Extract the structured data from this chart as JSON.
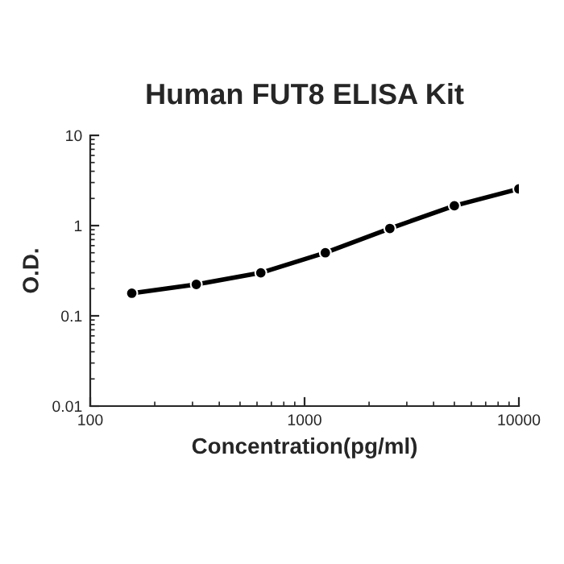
{
  "chart_data": {
    "type": "line",
    "title": "Human FUT8 ELISA Kit",
    "xlabel": "Concentration(pg/ml)",
    "ylabel": "O.D.",
    "x": [
      156.25,
      312.5,
      625,
      1250,
      2500,
      5000,
      10000
    ],
    "series": [
      {
        "color": "#000000",
        "values": [
          0.178,
          0.223,
          0.3,
          0.5,
          0.93,
          1.66,
          2.55
        ]
      }
    ],
    "log": "xy",
    "xlim": [
      100,
      10000
    ],
    "ylim": [
      0.01,
      10
    ],
    "xticks": [
      100,
      1000,
      10000
    ],
    "yticks": [
      0.01,
      0.1,
      1,
      10
    ],
    "marker": "circle",
    "line_style": "solid",
    "grid": false,
    "legend": false
  }
}
